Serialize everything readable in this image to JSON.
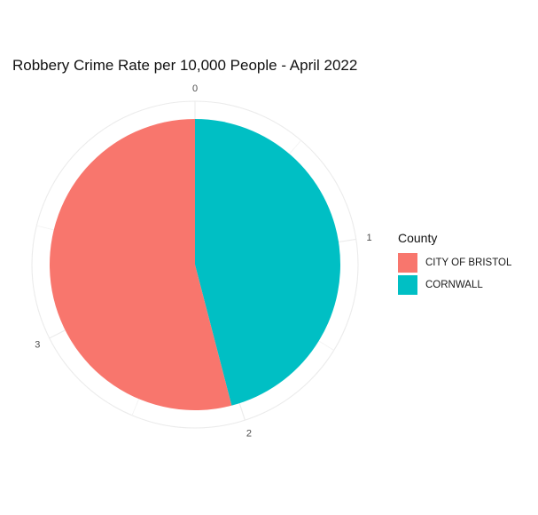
{
  "chart_data": {
    "type": "pie",
    "title": "Robbery Crime Rate per 10,000 People - April 2022",
    "theta_ticks": [
      "0",
      "1",
      "2",
      "3"
    ],
    "theta_range": [
      0,
      4.44
    ],
    "slices": [
      {
        "label": "CORNWALL",
        "value": 2.04,
        "color": "#00BFC4"
      },
      {
        "label": "CITY OF BRISTOL",
        "value": 2.4,
        "color": "#F8766D"
      }
    ],
    "legend": {
      "title": "County",
      "position": "right",
      "entries": [
        {
          "label": "CITY OF BRISTOL",
          "color": "#F8766D"
        },
        {
          "label": "CORNWALL",
          "color": "#00BFC4"
        }
      ]
    },
    "grid": true
  }
}
